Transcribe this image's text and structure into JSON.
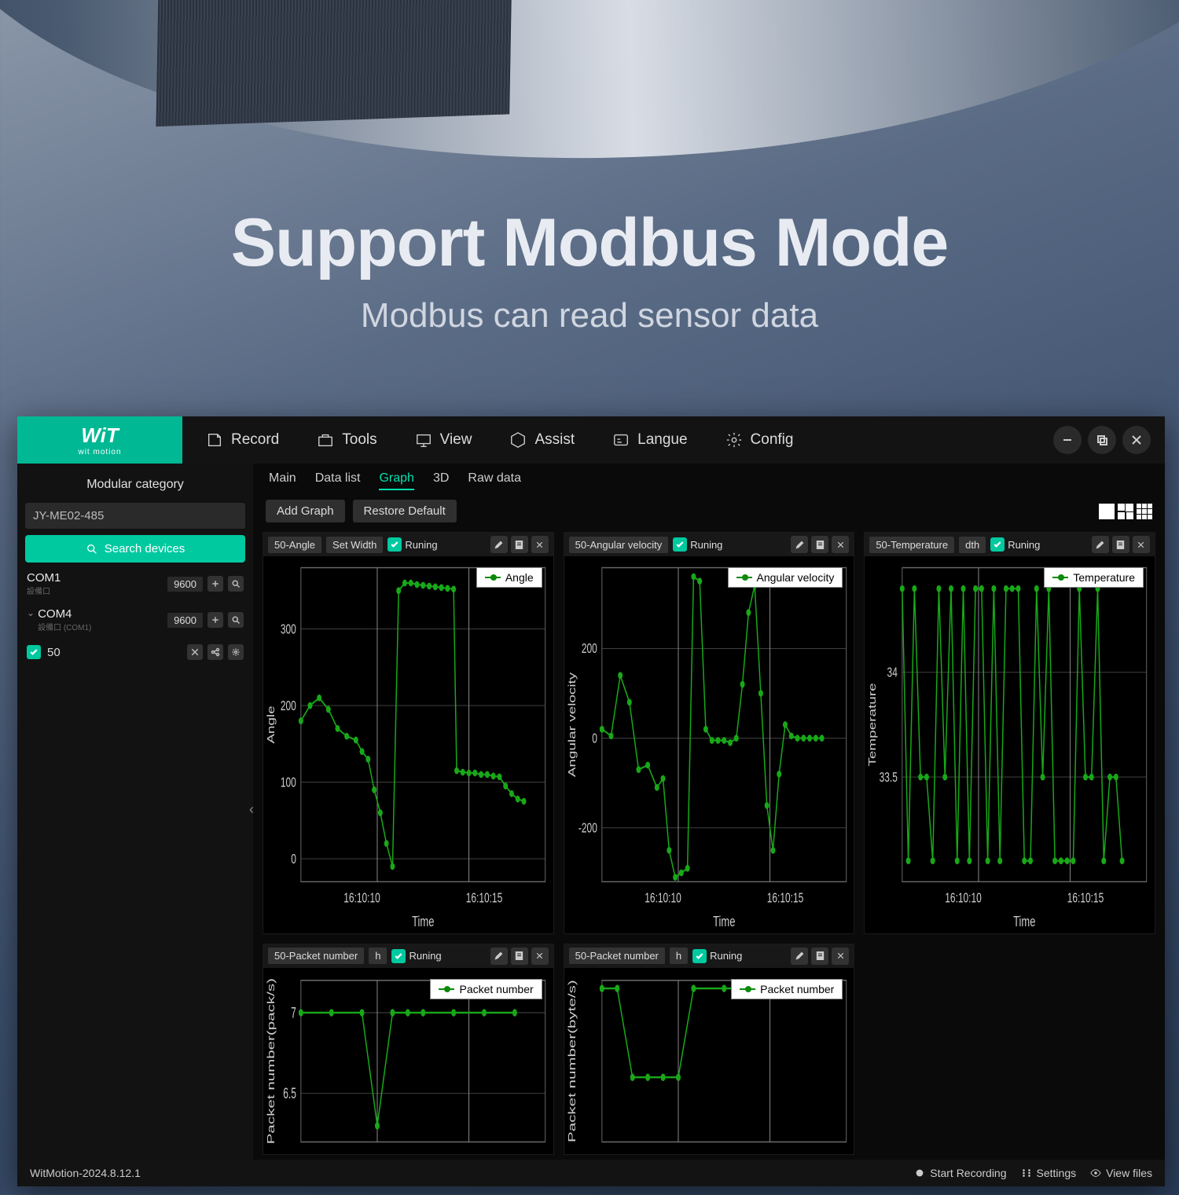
{
  "hero": {
    "title": "Support Modbus Mode",
    "subtitle": "Modbus can  read sensor data"
  },
  "logo": {
    "brand": "WiT",
    "sub": "wit motion"
  },
  "menu": {
    "record": "Record",
    "tools": "Tools",
    "view": "View",
    "assist": "Assist",
    "langue": "Langue",
    "config": "Config"
  },
  "sidebar": {
    "category": "Modular category",
    "device": "JY-ME02-485",
    "search": "Search devices",
    "com1": {
      "name": "COM1",
      "sub": "設備口",
      "baud": "9600"
    },
    "com4": {
      "name": "COM4",
      "sub": "設備口 (COM1)",
      "baud": "9600"
    },
    "node50": "50"
  },
  "tabs": {
    "main": "Main",
    "datalist": "Data list",
    "graph": "Graph",
    "3d": "3D",
    "rawdata": "Raw data"
  },
  "toolbar": {
    "add": "Add Graph",
    "restore": "Restore Default"
  },
  "colors": {
    "line": "#18a818",
    "grid": "#555555",
    "axis_text": "#cccccc",
    "plot_bg": "#000000",
    "accent": "#00c9a0"
  },
  "graph1": {
    "title": "50-Angle",
    "set_width": "Set Width",
    "running": "Runing",
    "legend": "Angle",
    "ylabel": "Angle",
    "xlabel": "Time",
    "yticks": [
      0,
      100,
      200,
      300
    ],
    "xticks": [
      "16:10:10",
      "16:10:15"
    ],
    "ylim": [
      -30,
      380
    ],
    "xlim": [
      0,
      8
    ],
    "data": [
      [
        0,
        180
      ],
      [
        0.3,
        200
      ],
      [
        0.6,
        210
      ],
      [
        0.9,
        195
      ],
      [
        1.2,
        170
      ],
      [
        1.5,
        160
      ],
      [
        1.8,
        155
      ],
      [
        2.0,
        140
      ],
      [
        2.2,
        130
      ],
      [
        2.4,
        90
      ],
      [
        2.6,
        60
      ],
      [
        2.8,
        20
      ],
      [
        3.0,
        -10
      ],
      [
        3.2,
        350
      ],
      [
        3.4,
        360
      ],
      [
        3.6,
        360
      ],
      [
        3.8,
        358
      ],
      [
        4.0,
        357
      ],
      [
        4.2,
        356
      ],
      [
        4.4,
        355
      ],
      [
        4.6,
        354
      ],
      [
        4.8,
        353
      ],
      [
        5.0,
        352
      ],
      [
        5.1,
        115
      ],
      [
        5.3,
        113
      ],
      [
        5.5,
        112
      ],
      [
        5.7,
        112
      ],
      [
        5.9,
        110
      ],
      [
        6.1,
        110
      ],
      [
        6.3,
        108
      ],
      [
        6.5,
        107
      ],
      [
        6.7,
        95
      ],
      [
        6.9,
        85
      ],
      [
        7.1,
        78
      ],
      [
        7.3,
        75
      ]
    ]
  },
  "graph2": {
    "title": "50-Angular velocity",
    "running": "Runing",
    "legend": "Angular velocity",
    "ylabel": "Angular velocity",
    "xlabel": "Time",
    "yticks": [
      -200,
      0,
      200
    ],
    "xticks": [
      "16:10:10",
      "16:10:15"
    ],
    "ylim": [
      -320,
      380
    ],
    "xlim": [
      0,
      8
    ],
    "data": [
      [
        0,
        20
      ],
      [
        0.3,
        5
      ],
      [
        0.6,
        140
      ],
      [
        0.9,
        80
      ],
      [
        1.2,
        -70
      ],
      [
        1.5,
        -60
      ],
      [
        1.8,
        -110
      ],
      [
        2.0,
        -90
      ],
      [
        2.2,
        -250
      ],
      [
        2.4,
        -310
      ],
      [
        2.6,
        -300
      ],
      [
        2.8,
        -290
      ],
      [
        3.0,
        360
      ],
      [
        3.2,
        350
      ],
      [
        3.4,
        20
      ],
      [
        3.6,
        -5
      ],
      [
        3.8,
        -5
      ],
      [
        4.0,
        -5
      ],
      [
        4.2,
        -10
      ],
      [
        4.4,
        0
      ],
      [
        4.6,
        120
      ],
      [
        4.8,
        280
      ],
      [
        5.0,
        340
      ],
      [
        5.2,
        100
      ],
      [
        5.4,
        -150
      ],
      [
        5.6,
        -250
      ],
      [
        5.8,
        -80
      ],
      [
        6.0,
        30
      ],
      [
        6.2,
        5
      ],
      [
        6.4,
        0
      ],
      [
        6.6,
        0
      ],
      [
        6.8,
        0
      ],
      [
        7.0,
        0
      ],
      [
        7.2,
        0
      ]
    ]
  },
  "graph3": {
    "title": "50-Temperature",
    "dth": "dth",
    "running": "Runing",
    "legend": "Temperature",
    "ylabel": "Temperature",
    "xlabel": "Time",
    "yticks": [
      33.5,
      34
    ],
    "xticks": [
      "16:10:10",
      "16:10:15"
    ],
    "ylim": [
      33.0,
      34.5
    ],
    "xlim": [
      0,
      8
    ],
    "data": [
      [
        0,
        34.4
      ],
      [
        0.2,
        33.1
      ],
      [
        0.4,
        34.4
      ],
      [
        0.6,
        33.5
      ],
      [
        0.8,
        33.5
      ],
      [
        1.0,
        33.1
      ],
      [
        1.2,
        34.4
      ],
      [
        1.4,
        33.5
      ],
      [
        1.6,
        34.4
      ],
      [
        1.8,
        33.1
      ],
      [
        2.0,
        34.4
      ],
      [
        2.2,
        33.1
      ],
      [
        2.4,
        34.4
      ],
      [
        2.6,
        34.4
      ],
      [
        2.8,
        33.1
      ],
      [
        3.0,
        34.4
      ],
      [
        3.2,
        33.1
      ],
      [
        3.4,
        34.4
      ],
      [
        3.6,
        34.4
      ],
      [
        3.8,
        34.4
      ],
      [
        4.0,
        33.1
      ],
      [
        4.2,
        33.1
      ],
      [
        4.4,
        34.4
      ],
      [
        4.6,
        33.5
      ],
      [
        4.8,
        34.4
      ],
      [
        5.0,
        33.1
      ],
      [
        5.2,
        33.1
      ],
      [
        5.4,
        33.1
      ],
      [
        5.6,
        33.1
      ],
      [
        5.8,
        34.4
      ],
      [
        6.0,
        33.5
      ],
      [
        6.2,
        33.5
      ],
      [
        6.4,
        34.4
      ],
      [
        6.6,
        33.1
      ],
      [
        6.8,
        33.5
      ],
      [
        7.0,
        33.5
      ],
      [
        7.2,
        33.1
      ]
    ]
  },
  "graph4": {
    "title": "50-Packet number",
    "h": "h",
    "running": "Runing",
    "legend": "Packet number",
    "ylabel": "Packet number(pack/s)",
    "yticks": [
      6.5,
      7
    ],
    "ylim": [
      6.2,
      7.2
    ],
    "xlim": [
      0,
      8
    ],
    "data": [
      [
        0,
        7
      ],
      [
        1,
        7
      ],
      [
        2,
        7
      ],
      [
        2.5,
        6.3
      ],
      [
        3,
        7
      ],
      [
        3.5,
        7
      ],
      [
        4,
        7
      ],
      [
        5,
        7
      ],
      [
        6,
        7
      ],
      [
        7,
        7
      ]
    ]
  },
  "graph5": {
    "title": "50-Packet number",
    "h": "h",
    "running": "Runing",
    "legend": "Packet number",
    "ylabel": "Packet number(byte/s)",
    "ylim": [
      0,
      10
    ],
    "xlim": [
      0,
      8
    ],
    "data": [
      [
        0,
        9.5
      ],
      [
        0.5,
        9.5
      ],
      [
        1,
        4
      ],
      [
        1.5,
        4
      ],
      [
        2,
        4
      ],
      [
        2.5,
        4
      ],
      [
        3,
        9.5
      ],
      [
        4,
        9.5
      ],
      [
        5,
        9.5
      ],
      [
        6,
        9.5
      ],
      [
        7,
        9.5
      ]
    ]
  },
  "status": {
    "version": "WitMotion-2024.8.12.1",
    "start": "Start Recording",
    "settings": "Settings",
    "viewfiles": "View files"
  }
}
